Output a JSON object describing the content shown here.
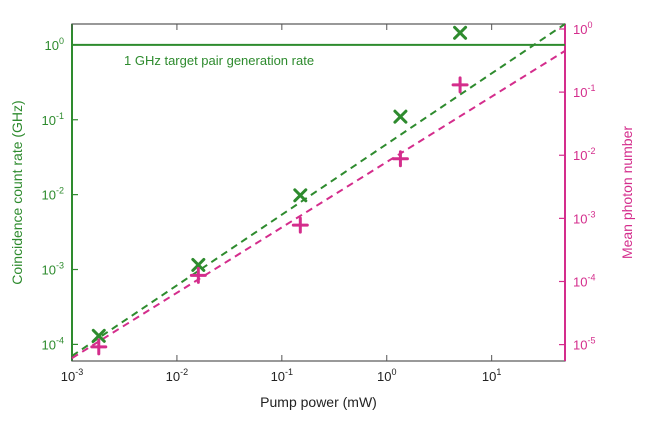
{
  "chart_data": {
    "type": "scatter",
    "xlabel": "Pump power (mW)",
    "ylabel_left": "Coincidence count rate (GHz)",
    "ylabel_right": "Mean photon number",
    "x_scale": "log",
    "y_left_scale": "log",
    "y_right_scale": "log",
    "xlim": [
      0.001,
      50
    ],
    "ylim_left": [
      6e-05,
      1.9
    ],
    "ylim_right": [
      5.5e-06,
      1.2
    ],
    "x_ticks": [
      {
        "base": "10",
        "exp": "-3",
        "value": 0.001
      },
      {
        "base": "10",
        "exp": "-2",
        "value": 0.01
      },
      {
        "base": "10",
        "exp": "-1",
        "value": 0.1
      },
      {
        "base": "10",
        "exp": "0",
        "value": 1
      },
      {
        "base": "10",
        "exp": "1",
        "value": 10
      }
    ],
    "y_left_ticks": [
      {
        "base": "10",
        "exp": "-4",
        "value": 0.0001
      },
      {
        "base": "10",
        "exp": "-3",
        "value": 0.001
      },
      {
        "base": "10",
        "exp": "-2",
        "value": 0.01
      },
      {
        "base": "10",
        "exp": "-1",
        "value": 0.1
      },
      {
        "base": "10",
        "exp": "0",
        "value": 1
      }
    ],
    "y_right_ticks": [
      {
        "base": "10",
        "exp": "-5",
        "value": 1e-05
      },
      {
        "base": "10",
        "exp": "-4",
        "value": 0.0001
      },
      {
        "base": "10",
        "exp": "-3",
        "value": 0.001
      },
      {
        "base": "10",
        "exp": "-2",
        "value": 0.01
      },
      {
        "base": "10",
        "exp": "-1",
        "value": 0.1
      },
      {
        "base": "10",
        "exp": "0",
        "value": 1
      }
    ],
    "series": [
      {
        "axis": "left",
        "marker": "x",
        "color": "#2e8b2e",
        "points": [
          {
            "x": 0.0018,
            "y": 0.00013
          },
          {
            "x": 0.016,
            "y": 0.00115
          },
          {
            "x": 0.15,
            "y": 0.0098
          },
          {
            "x": 1.35,
            "y": 0.11
          },
          {
            "x": 5.0,
            "y": 1.45
          }
        ],
        "fit": {
          "x": [
            0.001,
            50
          ],
          "y": [
            7e-05,
            1.9
          ]
        }
      },
      {
        "axis": "right",
        "marker": "+",
        "color": "#d42d8c",
        "points": [
          {
            "x": 0.0018,
            "y": 9.2e-06
          },
          {
            "x": 0.016,
            "y": 0.000125
          },
          {
            "x": 0.15,
            "y": 0.00078
          },
          {
            "x": 1.35,
            "y": 0.0088
          },
          {
            "x": 5.0,
            "y": 0.13
          }
        ],
        "fit": {
          "x": [
            0.001,
            50
          ],
          "y": [
            6.1e-06,
            0.45
          ]
        }
      }
    ],
    "reference_line": {
      "axis": "left",
      "y": 1,
      "label": "1 GHz target pair generation rate",
      "color": "#2e8b2e"
    },
    "grid": false,
    "colors": {
      "left_axis": "#2e8b2e",
      "right_axis": "#d42d8c",
      "frame": "#555555"
    }
  }
}
